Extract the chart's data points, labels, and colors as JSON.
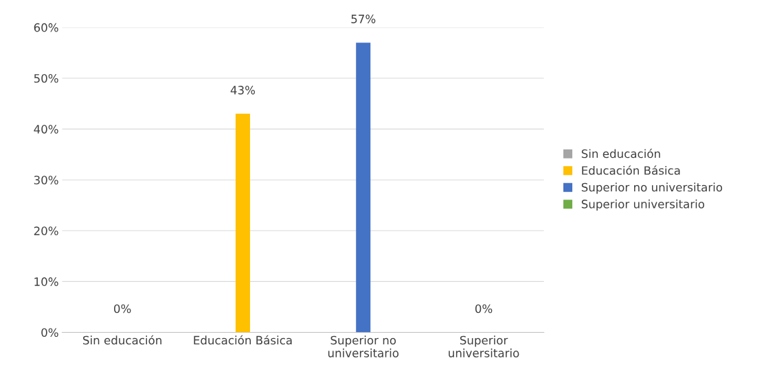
{
  "chart_data": {
    "type": "bar",
    "categories": [
      "Sin educación",
      "Educación Básica",
      "Superior no\nuniversitario",
      "Superior\nuniversitario"
    ],
    "series": [
      {
        "name": "Sin educación",
        "color": "#a5a5a5",
        "values": [
          0,
          null,
          null,
          null
        ],
        "value_labels": [
          "0%",
          null,
          null,
          null
        ]
      },
      {
        "name": "Educación Básica",
        "color": "#ffc000",
        "values": [
          null,
          43,
          null,
          null
        ],
        "value_labels": [
          null,
          "43%",
          null,
          null
        ]
      },
      {
        "name": "Superior no universitario",
        "color": "#4472c4",
        "values": [
          null,
          null,
          57,
          null
        ],
        "value_labels": [
          null,
          null,
          "57%",
          null
        ]
      },
      {
        "name": "Superior universitario",
        "color": "#70ad47",
        "values": [
          null,
          null,
          null,
          0
        ],
        "value_labels": [
          null,
          null,
          null,
          "0%"
        ]
      }
    ],
    "ylim": [
      0,
      60
    ],
    "yticks": [
      {
        "value": 0,
        "label": "0%"
      },
      {
        "value": 10,
        "label": "10%"
      },
      {
        "value": 20,
        "label": "20%"
      },
      {
        "value": 30,
        "label": "30%"
      },
      {
        "value": 40,
        "label": "40%"
      },
      {
        "value": 50,
        "label": "50%"
      },
      {
        "value": 60,
        "label": "60%"
      }
    ],
    "grid": "y",
    "legend": "right"
  }
}
